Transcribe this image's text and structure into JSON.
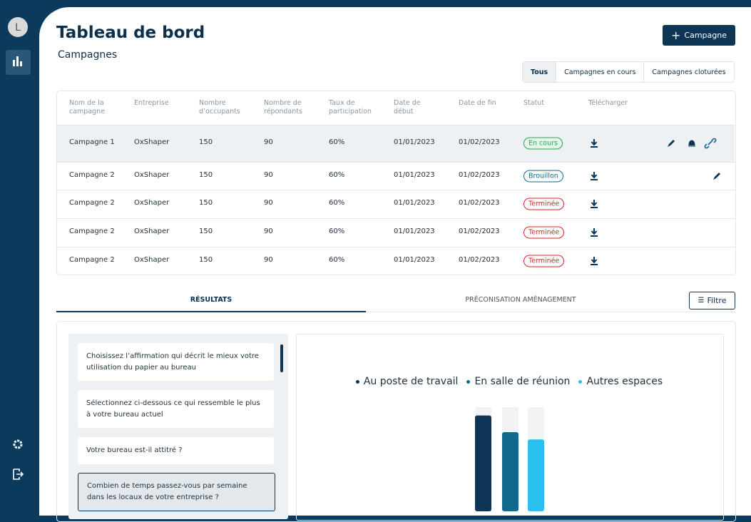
{
  "sidebar": {
    "avatar": "L"
  },
  "header": {
    "title": "Tableau de bord",
    "subtitle": "Campagnes",
    "button": "Campagne"
  },
  "filters": [
    "Tous",
    "Campagnes en cours",
    "Campagnes cloturées"
  ],
  "table": {
    "columns": [
      "Nom de la campagne",
      "Entreprise",
      "Nombre d’occupants",
      "Nombre de répondants",
      "Taux de participation",
      "Date de début",
      "Date de fin",
      "Statut",
      "Télécharger"
    ],
    "rows": [
      [
        "Campagne 1",
        "OxShaper",
        150,
        90,
        "60%",
        "01/01/2023",
        "01/02/2023",
        "En cours"
      ],
      [
        "Campagne 2",
        "OxShaper",
        150,
        90,
        "60%",
        "01/01/2023",
        "01/02/2023",
        "Brouillon"
      ],
      [
        "Campagne 2",
        "OxShaper",
        150,
        90,
        "60%",
        "01/01/2023",
        "01/02/2023",
        "Terminée"
      ],
      [
        "Campagne 2",
        "OxShaper",
        150,
        90,
        "60%",
        "01/01/2023",
        "01/02/2023",
        "Terminée"
      ],
      [
        "Campagne 2",
        "OxShaper",
        150,
        90,
        "60%",
        "01/01/2023",
        "01/02/2023",
        "Terminée"
      ]
    ],
    "badge_colors": [
      "#2e9e5b",
      "#0f6a8e",
      "#e02424",
      "#e02424",
      "#e02424"
    ]
  },
  "tabs": [
    "RÉSULTATS",
    "PRÉCONISATION AMÉNAGEMENT"
  ],
  "filter_button": "Filtre",
  "questions": [
    "Choisissez l’affirmation qui décrit le mieux votre utilisation du papier au bureau",
    "Sélectionnez ci-dessous ce qui ressemble le plus à votre bureau actuel",
    "Votre bureau est-il attitré ?",
    "Combien de temps passez-vous par semaine dans les locaux de votre entreprise ?"
  ],
  "chart_data": {
    "type": "bar",
    "categories": [
      null
    ],
    "series": [
      {
        "name": "Au poste de travail",
        "color": "#0c3556",
        "values": [
          92
        ]
      },
      {
        "name": "En salle de réunion",
        "color": "#0f6a8e",
        "values": [
          76
        ]
      },
      {
        "name": "Autres espaces",
        "color": "#29c0ee",
        "values": [
          69
        ]
      }
    ],
    "ylim": [
      0,
      100
    ]
  }
}
